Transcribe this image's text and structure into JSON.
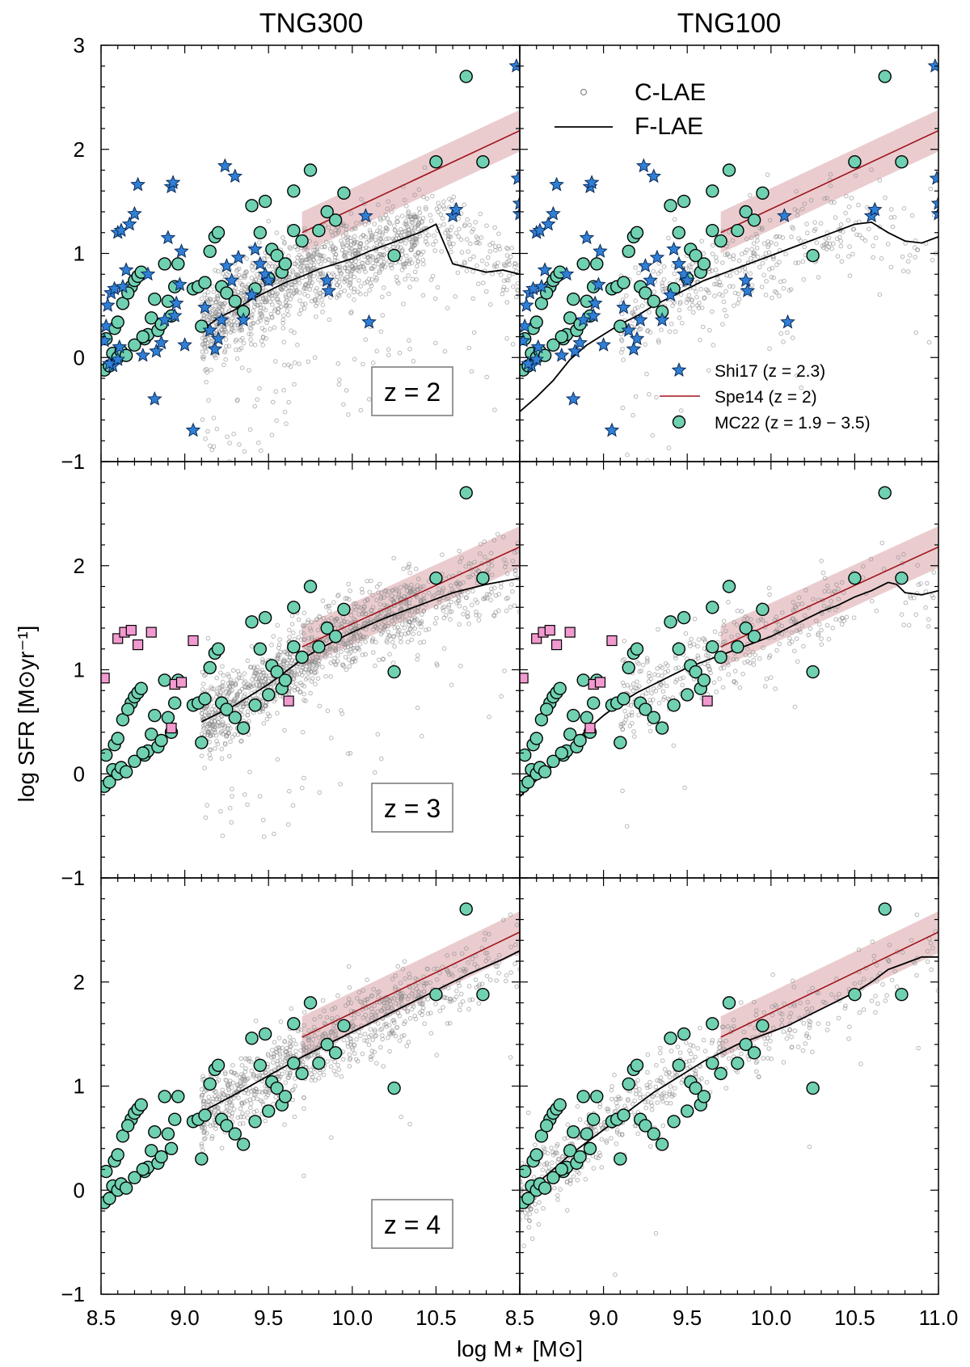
{
  "figure": {
    "column_titles": [
      "TNG300",
      "TNG100"
    ],
    "xlabel": "log M⋆ [M⊙]",
    "ylabel": "log SFR [M⊙yr⁻¹]",
    "z_labels": [
      "z = 2",
      "z = 3",
      "z = 4"
    ]
  },
  "legend_sim": {
    "c_lae": "C-LAE",
    "f_lae": "F-LAE"
  },
  "legend_obs": {
    "shi17": "Shi17 (z = 2.3)",
    "spe14": "Spe14 (z = 2)",
    "mc22": "MC22 (z = 1.9 − 3.5)"
  },
  "colors": {
    "star": "#2f7fd6",
    "circle": "#6fd1b2",
    "square": "#f29ad0",
    "spe14_line": "#a0141c",
    "spe14_band": "#d9a3a8",
    "c_lae": "#8a8a8a",
    "f_lae": "#000000"
  },
  "chart_data": {
    "type": "scatter",
    "layout": "3 rows x 2 columns, shared axes",
    "xlim": [
      8.5,
      11.0
    ],
    "ylim": [
      -1,
      3
    ],
    "xticks": [
      8.5,
      9.0,
      9.5,
      10.0,
      10.5,
      11.0
    ],
    "xtick_labels_left": [
      "8.5",
      "9.0",
      "9.5",
      "10.0",
      "10.5"
    ],
    "xtick_labels_right": [
      "8.5",
      "9.0",
      "9.5",
      "10.0",
      "10.5",
      "11.0"
    ],
    "yticks_top": [
      -1,
      0,
      1,
      2,
      3
    ],
    "yticks_lower": [
      -1,
      0,
      1,
      2
    ],
    "spe14": {
      "2": {
        "x": [
          9.7,
          11.0
        ],
        "y": [
          1.2,
          2.18
        ],
        "band": 0.2
      },
      "3": {
        "x": [
          9.7,
          11.0
        ],
        "y": [
          1.22,
          2.18
        ],
        "band": 0.2
      },
      "4": {
        "x": [
          9.7,
          11.0
        ],
        "y": [
          1.47,
          2.48
        ],
        "band": 0.2
      }
    },
    "f_lae": {
      "TNG300": {
        "2": {
          "x": [
            9.1,
            9.2,
            9.3,
            9.4,
            9.5,
            9.6,
            9.7,
            9.8,
            9.9,
            10.0,
            10.1,
            10.2,
            10.3,
            10.4,
            10.5,
            10.6,
            10.7,
            10.8,
            10.9,
            11.0
          ],
          "y": [
            0.26,
            0.38,
            0.46,
            0.56,
            0.64,
            0.72,
            0.78,
            0.85,
            0.9,
            0.95,
            1.02,
            1.08,
            1.14,
            1.2,
            1.28,
            0.9,
            0.86,
            0.82,
            0.84,
            0.8
          ]
        },
        "3": {
          "x": [
            9.1,
            9.2,
            9.3,
            9.4,
            9.5,
            9.6,
            9.7,
            9.8,
            9.9,
            10.0,
            10.2,
            10.4,
            10.6,
            10.8,
            11.0
          ],
          "y": [
            0.5,
            0.58,
            0.66,
            0.76,
            0.86,
            0.98,
            1.1,
            1.2,
            1.28,
            1.36,
            1.5,
            1.62,
            1.74,
            1.82,
            1.88
          ]
        },
        "4": {
          "x": [
            9.1,
            9.3,
            9.5,
            9.7,
            9.9,
            10.1,
            10.3,
            10.5,
            10.7,
            10.9,
            11.0
          ],
          "y": [
            0.75,
            0.92,
            1.1,
            1.28,
            1.44,
            1.6,
            1.76,
            1.92,
            2.08,
            2.22,
            2.3
          ]
        }
      },
      "TNG100": {
        "2": {
          "x": [
            8.5,
            8.6,
            8.7,
            8.8,
            8.9,
            9.0,
            9.1,
            9.2,
            9.3,
            9.4,
            9.5,
            9.6,
            9.7,
            9.8,
            9.9,
            10.0,
            10.1,
            10.2,
            10.3,
            10.4,
            10.5,
            10.6,
            10.7,
            10.8,
            10.9,
            11.0
          ],
          "y": [
            -0.52,
            -0.38,
            -0.22,
            -0.02,
            0.12,
            0.22,
            0.32,
            0.4,
            0.5,
            0.58,
            0.66,
            0.74,
            0.8,
            0.86,
            0.92,
            0.98,
            1.04,
            1.1,
            1.16,
            1.22,
            1.28,
            1.3,
            1.2,
            1.12,
            1.1,
            1.16
          ]
        },
        "3": {
          "x": [
            8.5,
            8.6,
            8.7,
            8.8,
            8.9,
            9.0,
            9.1,
            9.2,
            9.3,
            9.4,
            9.5,
            9.6,
            9.7,
            9.8,
            9.9,
            10.0,
            10.1,
            10.2,
            10.3,
            10.4,
            10.5,
            10.6,
            10.7,
            10.75,
            10.8,
            10.9,
            11.0
          ],
          "y": [
            -0.22,
            -0.06,
            0.08,
            0.26,
            0.42,
            0.56,
            0.68,
            0.78,
            0.86,
            0.94,
            1.02,
            1.08,
            1.14,
            1.2,
            1.26,
            1.32,
            1.4,
            1.48,
            1.56,
            1.62,
            1.7,
            1.76,
            1.84,
            1.82,
            1.74,
            1.72,
            1.76
          ]
        },
        "4": {
          "x": [
            8.5,
            8.6,
            8.7,
            8.8,
            8.9,
            9.0,
            9.1,
            9.2,
            9.3,
            9.4,
            9.5,
            9.6,
            9.7,
            9.8,
            9.9,
            10.0,
            10.1,
            10.2,
            10.3,
            10.4,
            10.5,
            10.6,
            10.7,
            10.8,
            10.9,
            11.0
          ],
          "y": [
            -0.12,
            0.06,
            0.2,
            0.34,
            0.46,
            0.58,
            0.7,
            0.82,
            0.94,
            1.04,
            1.14,
            1.24,
            1.32,
            1.4,
            1.46,
            1.52,
            1.58,
            1.66,
            1.74,
            1.82,
            1.9,
            2.0,
            2.12,
            2.18,
            2.24,
            2.24
          ]
        }
      }
    },
    "c_lae_cloud": {
      "TNG300": {
        "2": {
          "xmin": 9.1,
          "xmax": 11.0,
          "n": 1400,
          "scatter": 0.2,
          "outlier_frac": 0.06
        },
        "3": {
          "xmin": 9.1,
          "xmax": 11.0,
          "n": 1300,
          "scatter": 0.18,
          "outlier_frac": 0.02
        },
        "4": {
          "xmin": 9.1,
          "xmax": 11.0,
          "n": 900,
          "scatter": 0.18,
          "outlier_frac": 0.01
        }
      },
      "TNG100": {
        "2": {
          "xmin": 9.1,
          "xmax": 11.0,
          "n": 420,
          "scatter": 0.22,
          "outlier_frac": 0.05
        },
        "3": {
          "xmin": 9.1,
          "xmax": 11.0,
          "n": 380,
          "scatter": 0.2,
          "outlier_frac": 0.02
        },
        "4": {
          "xmin": 8.5,
          "xmax": 11.0,
          "n": 560,
          "scatter": 0.18,
          "outlier_frac": 0.01
        }
      }
    },
    "shi17": {
      "x": [
        8.52,
        8.53,
        8.54,
        8.56,
        8.58,
        8.6,
        8.62,
        8.63,
        8.57,
        8.55,
        8.6,
        8.61,
        8.65,
        8.67,
        8.7,
        8.72,
        8.75,
        8.78,
        8.82,
        8.83,
        8.86,
        8.88,
        8.9,
        8.92,
        8.93,
        8.94,
        8.95,
        8.97,
        8.98,
        9.0,
        9.05,
        9.12,
        9.15,
        9.18,
        9.2,
        9.22,
        9.24,
        9.25,
        9.28,
        9.3,
        9.32,
        9.35,
        9.4,
        9.42,
        9.45,
        9.48,
        9.5,
        9.85,
        9.86,
        10.08,
        10.1,
        10.6,
        10.62,
        10.98,
        10.99,
        11.0,
        11.0
      ],
      "y": [
        0.16,
        0.3,
        0.5,
        0.62,
        0.66,
        1.2,
        1.22,
        0.68,
        -0.08,
        -0.06,
        -0.02,
        0.1,
        0.84,
        1.28,
        1.38,
        1.66,
        0.02,
        0.8,
        -0.4,
        0.06,
        0.14,
        0.36,
        1.15,
        1.64,
        1.68,
        0.4,
        0.52,
        0.7,
        1.02,
        0.12,
        -0.7,
        0.48,
        0.26,
        0.08,
        0.18,
        0.36,
        1.84,
        0.88,
        0.74,
        1.74,
        0.96,
        0.36,
        0.6,
        1.04,
        0.9,
        0.8,
        0.74,
        0.74,
        0.64,
        1.36,
        0.34,
        1.36,
        1.42,
        2.8,
        1.72,
        1.48,
        1.38
      ]
    },
    "mc22": {
      "x": [
        8.52,
        8.53,
        8.55,
        8.57,
        8.6,
        8.62,
        8.65,
        8.68,
        8.7,
        8.72,
        8.74,
        8.76,
        8.78,
        8.8,
        8.82,
        8.84,
        8.86,
        8.88,
        8.9,
        8.92,
        8.94,
        8.96,
        8.58,
        8.6,
        8.63,
        8.66,
        8.7,
        8.75,
        9.05,
        9.08,
        9.1,
        9.12,
        9.15,
        9.18,
        9.2,
        9.22,
        9.25,
        9.3,
        9.35,
        9.4,
        9.42,
        9.45,
        9.48,
        9.5,
        9.52,
        9.55,
        9.58,
        9.6,
        9.65,
        9.7,
        9.75,
        9.8,
        9.85,
        9.9,
        9.95,
        10.25,
        10.5,
        10.68,
        10.78,
        9.65
      ],
      "y": [
        -0.12,
        0.18,
        -0.08,
        0.04,
        0.0,
        0.06,
        0.02,
        0.68,
        0.74,
        0.78,
        0.82,
        0.18,
        0.22,
        0.38,
        0.56,
        0.26,
        0.32,
        0.9,
        0.54,
        0.4,
        0.68,
        0.9,
        0.28,
        0.34,
        0.52,
        0.62,
        0.12,
        0.2,
        0.66,
        0.68,
        0.3,
        0.72,
        1.02,
        1.16,
        1.2,
        0.68,
        0.62,
        0.54,
        0.44,
        1.46,
        0.66,
        1.2,
        1.5,
        0.76,
        1.04,
        0.98,
        0.82,
        0.9,
        1.22,
        1.12,
        1.8,
        1.22,
        1.4,
        1.32,
        1.58,
        0.98,
        1.88,
        2.7,
        1.88,
        1.6
      ]
    },
    "squares_z3": {
      "x": [
        8.52,
        8.6,
        8.64,
        8.68,
        8.72,
        8.8,
        8.92,
        8.94,
        8.98,
        9.05,
        9.62
      ],
      "y": [
        0.92,
        1.3,
        1.36,
        1.38,
        1.24,
        1.36,
        0.44,
        0.86,
        0.88,
        1.28,
        0.7
      ]
    }
  }
}
